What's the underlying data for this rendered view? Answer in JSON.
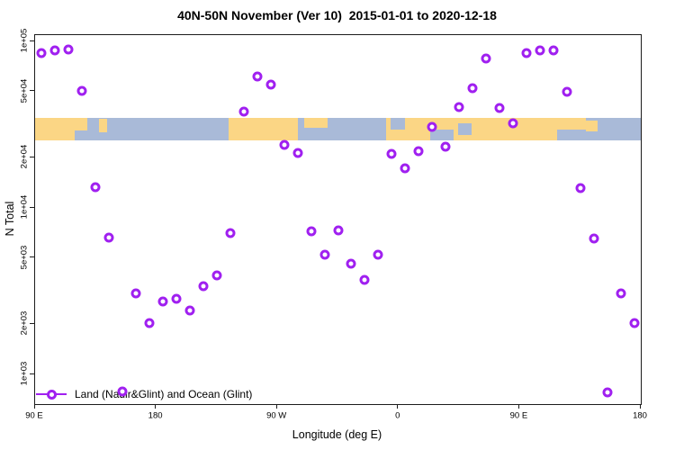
{
  "chart_data": {
    "type": "scatter",
    "title": "40N-50N November (Ver 10)  2015-01-01 to 2020-12-18",
    "xlabel": "Longitude (deg E)",
    "ylabel": "N Total",
    "x_axis": {
      "range": [
        90,
        540
      ],
      "tick_positions": [
        90,
        180,
        270,
        360,
        450,
        540
      ],
      "tick_labels": [
        "90 E",
        "180",
        "90 W",
        "0",
        "90 E",
        "180"
      ],
      "note": "longitude axis wraps eastward: 90E to 180, 90W, 0, 90E, 180"
    },
    "y_axis": {
      "scale": "log10",
      "range_log10": [
        2.822,
        5.038
      ],
      "tick_values": [
        100000,
        50000,
        20000,
        10000,
        5000,
        2000,
        1000
      ],
      "tick_labels": [
        "1e+05",
        "5e+04",
        "2e+04",
        "1e+04",
        "5e+03",
        "2e+03",
        "1e+03"
      ]
    },
    "legend": {
      "position": "bottom-left",
      "entries": [
        "Land (Nadir&Glint) and Ocean (Glint)"
      ]
    },
    "series": [
      {
        "name": "Land (Nadir&Glint) and Ocean (Glint)",
        "marker": "open-circle",
        "color": "#A020F0",
        "point_format": [
          "lon_axis_deg",
          "lon_label",
          "n_total"
        ],
        "points": [
          [
            95,
            "95E",
            85000
          ],
          [
            105,
            "105E",
            88000
          ],
          [
            115,
            "115E",
            89000
          ],
          [
            125,
            "125E",
            50400
          ],
          [
            135,
            "135E",
            13300
          ],
          [
            145,
            "145E",
            6600
          ],
          [
            155,
            "155E",
            790
          ],
          [
            165,
            "165E",
            3060
          ],
          [
            175,
            "175E",
            2030
          ],
          [
            185,
            "175W",
            2740
          ],
          [
            195,
            "165W",
            2850
          ],
          [
            205,
            "155W",
            2420
          ],
          [
            215,
            "145W",
            3390
          ],
          [
            225,
            "135W",
            3940
          ],
          [
            235,
            "125W",
            7100
          ],
          [
            245,
            "115W",
            37900
          ],
          [
            255,
            "105W",
            61500
          ],
          [
            265,
            "95W",
            55000
          ],
          [
            275,
            "85W",
            23900
          ],
          [
            285,
            "75W",
            21400
          ],
          [
            295,
            "65W",
            7230
          ],
          [
            305,
            "55W",
            5230
          ],
          [
            315,
            "45W",
            7300
          ],
          [
            325,
            "35W",
            4620
          ],
          [
            335,
            "25W",
            3700
          ],
          [
            345,
            "15W",
            5230
          ],
          [
            355,
            "5W",
            21100
          ],
          [
            365,
            "5E",
            17300
          ],
          [
            375,
            "15E",
            21900
          ],
          [
            385,
            "25E",
            30600
          ],
          [
            395,
            "35E",
            23300
          ],
          [
            405,
            "45E",
            40300
          ],
          [
            415,
            "55E",
            52400
          ],
          [
            425,
            "65E",
            79000
          ],
          [
            435,
            "75E",
            39800
          ],
          [
            445,
            "85E",
            32200
          ],
          [
            455,
            "95E",
            85000
          ],
          [
            465,
            "105E",
            88000
          ],
          [
            475,
            "115E",
            88000
          ],
          [
            485,
            "125E",
            49800
          ],
          [
            495,
            "135E",
            13200
          ],
          [
            505,
            "145E",
            6550
          ],
          [
            515,
            "155E",
            780
          ],
          [
            525,
            "165E",
            3060
          ],
          [
            535,
            "175E",
            2030
          ]
        ]
      }
    ],
    "map_strip": {
      "description": "40N-50N latitude band world map strip",
      "ocean_color": "#A9BAD8",
      "land_color": "#FBD685",
      "y_top_frac": 0.2244,
      "y_height_frac": 0.061,
      "rect_format": [
        "x0_frac",
        "x1_frac",
        "y0_frac",
        "y1_frac"
      ],
      "land_rects": [
        [
          0.0,
          0.0862,
          0.0,
          1.0
        ],
        [
          0.1055,
          0.1189,
          0.05,
          0.65
        ],
        [
          0.3195,
          0.4339,
          0.0,
          1.0
        ],
        [
          0.4443,
          0.4829,
          0.0,
          0.45
        ],
        [
          0.5795,
          0.9094,
          0.0,
          1.0
        ],
        [
          0.9094,
          0.9287,
          0.1,
          0.6
        ]
      ],
      "ocean_patches": [
        [
          0.0654,
          0.0862,
          0.55,
          1.0
        ],
        [
          0.587,
          0.6107,
          0.0,
          0.5
        ],
        [
          0.6523,
          0.6909,
          0.5,
          1.0
        ],
        [
          0.6983,
          0.7206,
          0.25,
          0.75
        ],
        [
          0.8618,
          0.9094,
          0.5,
          1.0
        ]
      ]
    },
    "colors": {
      "marker": "#A020F0",
      "box": "#1c1c1c",
      "background": "#FFFFFF"
    }
  }
}
